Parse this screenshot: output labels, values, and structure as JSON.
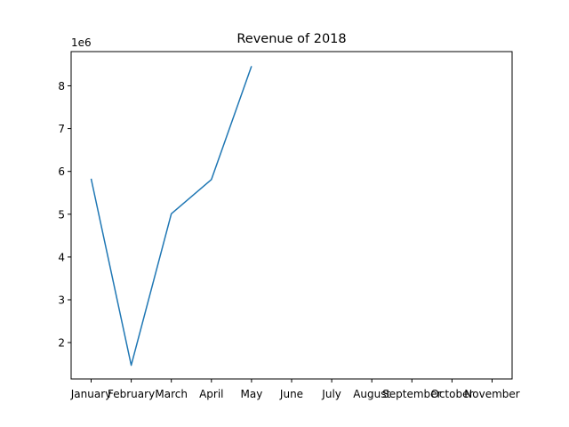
{
  "chart_data": {
    "type": "line",
    "title": "Revenue of 2018",
    "xlabel": "",
    "ylabel": "",
    "y_offset_label": "1e6",
    "categories": [
      "January",
      "February",
      "March",
      "April",
      "May",
      "June",
      "July",
      "August",
      "September",
      "October",
      "November"
    ],
    "series": [
      {
        "values": [
          5.83,
          1.47,
          5.01,
          5.81,
          8.46,
          null,
          null,
          null,
          null,
          null,
          null
        ],
        "color": "#1f77b4"
      }
    ],
    "y_ticks": [
      2,
      3,
      4,
      5,
      6,
      7,
      8
    ],
    "ylim": [
      1.15,
      8.8
    ],
    "grid": false,
    "legend": "none"
  }
}
